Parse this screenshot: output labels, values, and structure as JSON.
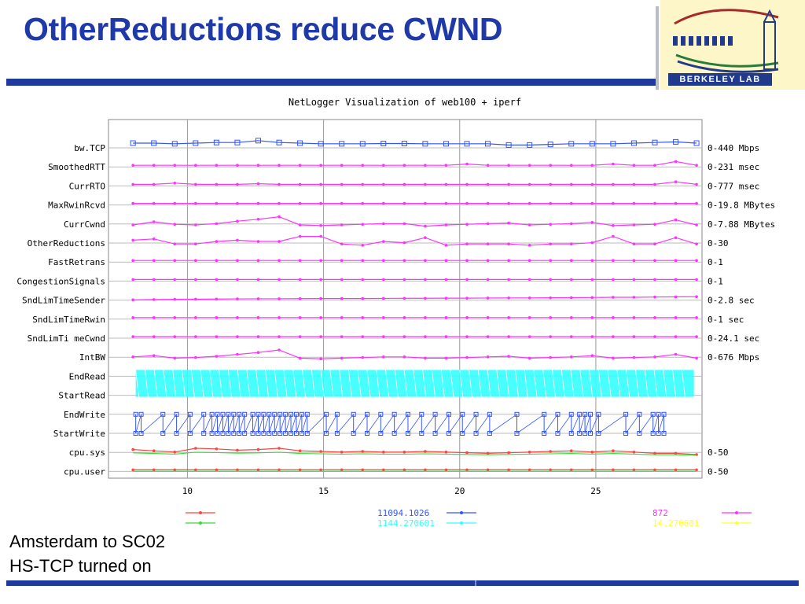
{
  "slide": {
    "title": "OtherReductions reduce CWND",
    "caption_line1": "Amsterdam to SC02",
    "caption_line2": "HS-TCP turned on",
    "logo_text": "BERKELEY LAB"
  },
  "colors": {
    "title": "#1f3aa8",
    "rule": "#1e3a9e",
    "magenta": "#ff33ff",
    "blue": "#3355ff",
    "cyan": "#33ffff",
    "red": "#ff4444",
    "green": "#33dd33",
    "yellow": "#ffff33"
  },
  "chart_data": {
    "type": "line",
    "title": "NetLogger Visualization of web100 + iperf",
    "xlim": [
      7.1,
      28.9
    ],
    "x_ticks": [
      "10",
      "15",
      "20",
      "25"
    ],
    "grid": true,
    "rows": [
      {
        "name": "bw.TCP",
        "range": "0-440 Mbps",
        "color": "#3355ff",
        "y": [
          0.75,
          0.75,
          0.7,
          0.75,
          0.8,
          0.8,
          0.95,
          0.8,
          0.75,
          0.7,
          0.7,
          0.7,
          0.72,
          0.72,
          0.7,
          0.7,
          0.7,
          0.7,
          0.6,
          0.6,
          0.65,
          0.7,
          0.7,
          0.7,
          0.75,
          0.8,
          0.85,
          0.75
        ]
      },
      {
        "name": "SmoothedRTT",
        "range": "0-231 msec",
        "color": "#ff33ff",
        "y": [
          0.5,
          0.5,
          0.5,
          0.5,
          0.5,
          0.5,
          0.5,
          0.5,
          0.5,
          0.5,
          0.5,
          0.5,
          0.5,
          0.5,
          0.5,
          0.5,
          0.6,
          0.5,
          0.5,
          0.5,
          0.5,
          0.5,
          0.5,
          0.6,
          0.5,
          0.5,
          0.8,
          0.5
        ]
      },
      {
        "name": "CurrRTO",
        "range": "0-777 msec",
        "color": "#ff33ff",
        "y": [
          0.5,
          0.5,
          0.6,
          0.5,
          0.5,
          0.5,
          0.55,
          0.5,
          0.5,
          0.5,
          0.5,
          0.5,
          0.5,
          0.5,
          0.5,
          0.5,
          0.5,
          0.5,
          0.5,
          0.5,
          0.5,
          0.5,
          0.5,
          0.5,
          0.5,
          0.5,
          0.7,
          0.5
        ]
      },
      {
        "name": "MaxRwinRcvd",
        "range": "0-19.8 MBytes",
        "color": "#ff33ff",
        "y": [
          0.5,
          0.5,
          0.5,
          0.5,
          0.5,
          0.5,
          0.5,
          0.5,
          0.5,
          0.5,
          0.5,
          0.5,
          0.5,
          0.5,
          0.5,
          0.5,
          0.5,
          0.5,
          0.5,
          0.5,
          0.5,
          0.5,
          0.5,
          0.5,
          0.5,
          0.5,
          0.5,
          0.5
        ]
      },
      {
        "name": "CurrCwnd",
        "range": "0-7.88 MBytes",
        "color": "#ff33ff",
        "y": [
          0.3,
          0.55,
          0.35,
          0.3,
          0.4,
          0.6,
          0.75,
          0.95,
          0.3,
          0.25,
          0.3,
          0.35,
          0.4,
          0.4,
          0.2,
          0.3,
          0.35,
          0.4,
          0.45,
          0.3,
          0.35,
          0.4,
          0.5,
          0.25,
          0.3,
          0.35,
          0.7,
          0.3
        ]
      },
      {
        "name": "OtherReductions",
        "range": "0-30",
        "color": "#ff33ff",
        "y": [
          0.6,
          0.7,
          0.3,
          0.3,
          0.5,
          0.6,
          0.5,
          0.5,
          0.9,
          0.9,
          0.3,
          0.2,
          0.5,
          0.4,
          0.8,
          0.2,
          0.3,
          0.3,
          0.3,
          0.2,
          0.3,
          0.3,
          0.4,
          0.9,
          0.3,
          0.3,
          0.8,
          0.3
        ]
      },
      {
        "name": "FastRetrans",
        "range": "0-1",
        "color": "#ff33ff",
        "y": [
          0.5,
          0.5,
          0.5,
          0.5,
          0.5,
          0.5,
          0.5,
          0.5,
          0.5,
          0.5,
          0.5,
          0.5,
          0.5,
          0.5,
          0.5,
          0.5,
          0.5,
          0.5,
          0.5,
          0.5,
          0.5,
          0.5,
          0.5,
          0.5,
          0.5,
          0.5,
          0.5,
          0.5
        ]
      },
      {
        "name": "CongestionSignals",
        "range": "0-1",
        "color": "#ff33ff",
        "y": [
          0.5,
          0.5,
          0.5,
          0.5,
          0.5,
          0.5,
          0.5,
          0.5,
          0.5,
          0.5,
          0.5,
          0.5,
          0.5,
          0.5,
          0.5,
          0.5,
          0.5,
          0.5,
          0.5,
          0.5,
          0.5,
          0.5,
          0.5,
          0.5,
          0.5,
          0.5,
          0.5,
          0.5
        ]
      },
      {
        "name": "SndLimTimeSender",
        "range": "0-2.8 sec",
        "color": "#ff33ff",
        "y": [
          0.4,
          0.42,
          0.44,
          0.45,
          0.46,
          0.47,
          0.48,
          0.48,
          0.49,
          0.5,
          0.5,
          0.5,
          0.51,
          0.52,
          0.52,
          0.53,
          0.53,
          0.54,
          0.55,
          0.55,
          0.56,
          0.57,
          0.58,
          0.6,
          0.6,
          0.62,
          0.63,
          0.65
        ]
      },
      {
        "name": "SndLimTimeRwin",
        "range": "0-1 sec",
        "color": "#ff33ff",
        "y": [
          0.5,
          0.5,
          0.5,
          0.5,
          0.5,
          0.5,
          0.5,
          0.5,
          0.5,
          0.5,
          0.5,
          0.5,
          0.5,
          0.5,
          0.5,
          0.5,
          0.5,
          0.5,
          0.5,
          0.5,
          0.5,
          0.5,
          0.5,
          0.5,
          0.5,
          0.5,
          0.5,
          0.5
        ]
      },
      {
        "name": "SndLimTi meCwnd",
        "range": "0-24.1 sec",
        "color": "#ff33ff",
        "y": [
          0.5,
          0.5,
          0.5,
          0.5,
          0.5,
          0.5,
          0.5,
          0.5,
          0.5,
          0.5,
          0.5,
          0.5,
          0.5,
          0.5,
          0.5,
          0.5,
          0.5,
          0.5,
          0.5,
          0.5,
          0.5,
          0.5,
          0.5,
          0.5,
          0.5,
          0.5,
          0.5,
          0.5
        ]
      },
      {
        "name": "IntBW",
        "range": "0-676 Mbps",
        "color": "#ff33ff",
        "y": [
          0.4,
          0.5,
          0.3,
          0.35,
          0.45,
          0.6,
          0.75,
          0.95,
          0.3,
          0.25,
          0.3,
          0.35,
          0.4,
          0.4,
          0.3,
          0.3,
          0.35,
          0.4,
          0.45,
          0.3,
          0.35,
          0.4,
          0.5,
          0.3,
          0.35,
          0.4,
          0.6,
          0.3
        ]
      },
      {
        "name": "EndRead",
        "range": "",
        "color": "#33ffff",
        "y": []
      },
      {
        "name": "StartRead",
        "range": "",
        "color": "#33ffff",
        "y": []
      },
      {
        "name": "EndWrite",
        "range": "",
        "color": "#3355ff",
        "y": []
      },
      {
        "name": "StartWrite",
        "range": "",
        "color": "#3355ff",
        "y": []
      },
      {
        "name": "cpu.sys",
        "range": "0-50",
        "color": "#ff4444",
        "y": [
          0.6,
          0.5,
          0.4,
          0.7,
          0.65,
          0.55,
          0.6,
          0.7,
          0.5,
          0.45,
          0.4,
          0.45,
          0.4,
          0.4,
          0.45,
          0.4,
          0.35,
          0.3,
          0.35,
          0.4,
          0.45,
          0.5,
          0.4,
          0.5,
          0.4,
          0.3,
          0.3,
          0.2
        ]
      },
      {
        "name": "cpu.user",
        "range": "0-50",
        "color": "#ff4444",
        "y": [
          0.5,
          0.5,
          0.5,
          0.5,
          0.5,
          0.5,
          0.5,
          0.5,
          0.5,
          0.5,
          0.5,
          0.5,
          0.5,
          0.5,
          0.5,
          0.5,
          0.5,
          0.5,
          0.5,
          0.5,
          0.5,
          0.5,
          0.5,
          0.5,
          0.5,
          0.5,
          0.5,
          0.5
        ]
      }
    ],
    "legend": [
      {
        "label": "",
        "color": "#ff4444"
      },
      {
        "label": "",
        "color": "#33dd33"
      },
      {
        "label": "11094.1026",
        "color": "#3355ff"
      },
      {
        "label": "1144.270601",
        "color": "#33ffff"
      },
      {
        "label": "872",
        "color": "#ff33ff"
      },
      {
        "label": "14.270601",
        "color": "#ffff33"
      }
    ]
  }
}
